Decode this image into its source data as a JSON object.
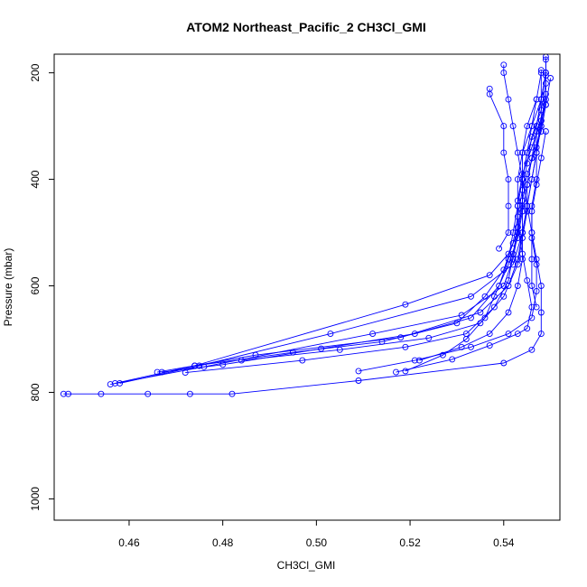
{
  "chart_data": {
    "type": "line",
    "title": "ATOM2 Northeast_Pacific_2 CH3Cl_GMI",
    "xlabel": "CH3Cl_GMI",
    "ylabel": "Pressure (mbar)",
    "xlim": [
      0.444,
      0.552
    ],
    "ylim": [
      1040,
      165
    ],
    "y_inverted": true,
    "x_ticks": [
      0.46,
      0.48,
      0.5,
      0.52,
      0.54
    ],
    "x_tick_labels": [
      "0.46",
      "0.48",
      "0.50",
      "0.52",
      "0.54"
    ],
    "y_ticks": [
      200,
      400,
      600,
      800,
      1000
    ],
    "y_tick_labels": [
      "200",
      "400",
      "600",
      "800",
      "1000"
    ],
    "grid": false,
    "marker": "open-circle",
    "color": "#0000ff",
    "series": [
      {
        "values": [
          [
            0.446,
            803
          ],
          [
            0.447,
            803
          ],
          [
            0.454,
            803
          ],
          [
            0.464,
            803
          ],
          [
            0.473,
            803
          ],
          [
            0.482,
            803
          ],
          [
            0.509,
            778
          ],
          [
            0.54,
            745
          ],
          [
            0.546,
            720
          ],
          [
            0.548,
            690
          ],
          [
            0.548,
            650
          ],
          [
            0.548,
            600
          ],
          [
            0.547,
            550
          ],
          [
            0.546,
            500
          ],
          [
            0.546,
            450
          ],
          [
            0.547,
            400
          ],
          [
            0.547,
            350
          ],
          [
            0.548,
            300
          ],
          [
            0.548,
            250
          ],
          [
            0.549,
            200
          ],
          [
            0.549,
            170
          ]
        ]
      },
      {
        "values": [
          [
            0.458,
            783
          ],
          [
            0.475,
            750
          ],
          [
            0.503,
            690
          ],
          [
            0.533,
            620
          ],
          [
            0.542,
            560
          ],
          [
            0.544,
            500
          ],
          [
            0.545,
            450
          ],
          [
            0.546,
            400
          ],
          [
            0.547,
            350
          ],
          [
            0.548,
            300
          ],
          [
            0.549,
            250
          ],
          [
            0.549,
            200
          ],
          [
            0.549,
            175
          ]
        ]
      },
      {
        "values": [
          [
            0.457,
            783
          ],
          [
            0.474,
            750
          ],
          [
            0.519,
            635
          ],
          [
            0.537,
            580
          ],
          [
            0.541,
            540
          ],
          [
            0.543,
            500
          ],
          [
            0.544,
            450
          ],
          [
            0.544,
            400
          ],
          [
            0.545,
            350
          ],
          [
            0.547,
            300
          ],
          [
            0.548,
            250
          ],
          [
            0.549,
            200
          ]
        ]
      },
      {
        "values": [
          [
            0.456,
            785
          ],
          [
            0.476,
            752
          ],
          [
            0.512,
            690
          ],
          [
            0.531,
            655
          ],
          [
            0.54,
            600
          ],
          [
            0.542,
            550
          ],
          [
            0.543,
            500
          ],
          [
            0.543,
            450
          ],
          [
            0.543,
            400
          ],
          [
            0.544,
            350
          ],
          [
            0.546,
            300
          ],
          [
            0.548,
            250
          ],
          [
            0.549,
            205
          ]
        ]
      },
      {
        "values": [
          [
            0.466,
            762
          ],
          [
            0.487,
            730
          ],
          [
            0.518,
            697
          ],
          [
            0.535,
            650
          ],
          [
            0.541,
            600
          ],
          [
            0.543,
            550
          ],
          [
            0.544,
            500
          ],
          [
            0.545,
            450
          ],
          [
            0.546,
            400
          ],
          [
            0.547,
            350
          ],
          [
            0.547,
            300
          ],
          [
            0.548,
            250
          ],
          [
            0.548,
            195
          ]
        ]
      },
      {
        "values": [
          [
            0.467,
            762
          ],
          [
            0.48,
            748
          ],
          [
            0.501,
            718
          ],
          [
            0.521,
            690
          ],
          [
            0.533,
            660
          ],
          [
            0.539,
            600
          ],
          [
            0.541,
            550
          ],
          [
            0.542,
            500
          ],
          [
            0.543,
            450
          ],
          [
            0.544,
            400
          ],
          [
            0.545,
            350
          ],
          [
            0.546,
            300
          ],
          [
            0.547,
            250
          ],
          [
            0.548,
            200
          ]
        ]
      },
      {
        "values": [
          [
            0.474,
            750
          ],
          [
            0.495,
            725
          ],
          [
            0.514,
            705
          ],
          [
            0.53,
            670
          ],
          [
            0.536,
            620
          ],
          [
            0.54,
            570
          ],
          [
            0.542,
            520
          ],
          [
            0.543,
            470
          ],
          [
            0.544,
            420
          ],
          [
            0.545,
            370
          ],
          [
            0.546,
            320
          ],
          [
            0.548,
            270
          ],
          [
            0.549,
            220
          ]
        ]
      },
      {
        "values": [
          [
            0.472,
            763
          ],
          [
            0.497,
            740
          ],
          [
            0.519,
            715
          ],
          [
            0.532,
            690
          ],
          [
            0.538,
            640
          ],
          [
            0.541,
            590
          ],
          [
            0.542,
            540
          ],
          [
            0.543,
            490
          ],
          [
            0.544,
            440
          ],
          [
            0.545,
            390
          ],
          [
            0.547,
            340
          ],
          [
            0.548,
            290
          ],
          [
            0.549,
            240
          ]
        ]
      },
      {
        "values": [
          [
            0.484,
            740
          ],
          [
            0.505,
            720
          ],
          [
            0.524,
            698
          ],
          [
            0.535,
            670
          ],
          [
            0.54,
            620
          ],
          [
            0.543,
            560
          ],
          [
            0.544,
            510
          ],
          [
            0.545,
            460
          ],
          [
            0.545,
            410
          ],
          [
            0.546,
            360
          ],
          [
            0.547,
            310
          ],
          [
            0.549,
            260
          ]
        ]
      },
      {
        "values": [
          [
            0.509,
            760
          ],
          [
            0.521,
            740
          ],
          [
            0.533,
            715
          ],
          [
            0.541,
            690
          ],
          [
            0.546,
            660
          ],
          [
            0.547,
            610
          ],
          [
            0.547,
            560
          ],
          [
            0.546,
            510
          ],
          [
            0.546,
            460
          ],
          [
            0.547,
            410
          ],
          [
            0.548,
            360
          ],
          [
            0.549,
            310
          ]
        ]
      },
      {
        "values": [
          [
            0.517,
            762
          ],
          [
            0.529,
            738
          ],
          [
            0.537,
            712
          ],
          [
            0.543,
            690
          ],
          [
            0.545,
            680
          ],
          [
            0.546,
            640
          ],
          [
            0.545,
            590
          ],
          [
            0.544,
            540
          ],
          [
            0.543,
            490
          ],
          [
            0.543,
            440
          ],
          [
            0.544,
            390
          ],
          [
            0.546,
            340
          ],
          [
            0.548,
            290
          ]
        ]
      },
      {
        "values": [
          [
            0.522,
            740
          ],
          [
            0.531,
            715
          ],
          [
            0.537,
            690
          ],
          [
            0.541,
            650
          ],
          [
            0.543,
            600
          ],
          [
            0.544,
            550
          ],
          [
            0.544,
            500
          ],
          [
            0.544,
            450
          ],
          [
            0.544,
            400
          ],
          [
            0.544,
            350
          ],
          [
            0.545,
            300
          ],
          [
            0.547,
            250
          ]
        ]
      },
      {
        "values": [
          [
            0.537,
            230
          ],
          [
            0.537,
            240
          ],
          [
            0.54,
            300
          ],
          [
            0.54,
            350
          ],
          [
            0.541,
            400
          ],
          [
            0.541,
            450
          ],
          [
            0.541,
            500
          ],
          [
            0.539,
            530
          ]
        ]
      },
      {
        "values": [
          [
            0.54,
            185
          ],
          [
            0.54,
            200
          ],
          [
            0.541,
            250
          ],
          [
            0.542,
            300
          ],
          [
            0.543,
            350
          ],
          [
            0.544,
            400
          ],
          [
            0.545,
            450
          ],
          [
            0.546,
            500
          ],
          [
            0.546,
            550
          ],
          [
            0.546,
            600
          ],
          [
            0.547,
            640
          ]
        ]
      },
      {
        "values": [
          [
            0.519,
            760
          ],
          [
            0.527,
            730
          ],
          [
            0.532,
            700
          ],
          [
            0.536,
            660
          ],
          [
            0.538,
            620
          ],
          [
            0.541,
            560
          ],
          [
            0.543,
            510
          ],
          [
            0.544,
            460
          ],
          [
            0.545,
            410
          ],
          [
            0.546,
            360
          ],
          [
            0.548,
            310
          ],
          [
            0.549,
            260
          ],
          [
            0.55,
            210
          ]
        ]
      }
    ]
  }
}
